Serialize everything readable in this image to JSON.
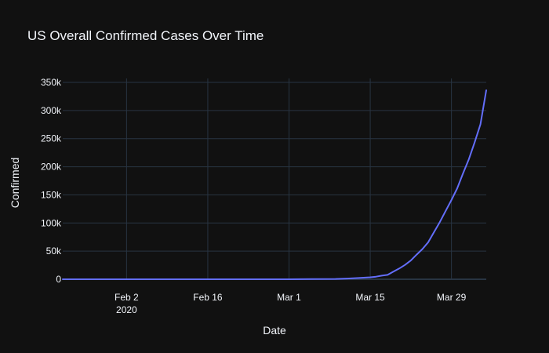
{
  "chart_data": {
    "type": "line",
    "title": "US Overall Confirmed Cases Over Time",
    "xlabel": "Date",
    "ylabel": "Confirmed",
    "xlim": [
      "2020-01-22",
      "2020-04-04"
    ],
    "ylim": [
      0,
      357000
    ],
    "grid": true,
    "x_ticks": [
      {
        "date": "2020-02-02",
        "label": "Feb 2",
        "sublabel": "2020"
      },
      {
        "date": "2020-02-16",
        "label": "Feb 16"
      },
      {
        "date": "2020-03-01",
        "label": "Mar 1"
      },
      {
        "date": "2020-03-15",
        "label": "Mar 15"
      },
      {
        "date": "2020-03-29",
        "label": "Mar 29"
      }
    ],
    "y_ticks": [
      {
        "value": 0,
        "label": "0"
      },
      {
        "value": 50000,
        "label": "50k"
      },
      {
        "value": 100000,
        "label": "100k"
      },
      {
        "value": 150000,
        "label": "150k"
      },
      {
        "value": 200000,
        "label": "200k"
      },
      {
        "value": 250000,
        "label": "250k"
      },
      {
        "value": 300000,
        "label": "300k"
      },
      {
        "value": 350000,
        "label": "350k"
      }
    ],
    "series": [
      {
        "color": "#636efa",
        "x": [
          "2020-01-22",
          "2020-02-05",
          "2020-02-19",
          "2020-03-01",
          "2020-03-05",
          "2020-03-09",
          "2020-03-11",
          "2020-03-13",
          "2020-03-15",
          "2020-03-16",
          "2020-03-17",
          "2020-03-18",
          "2020-03-19",
          "2020-03-20",
          "2020-03-21",
          "2020-03-22",
          "2020-03-23",
          "2020-03-24",
          "2020-03-25",
          "2020-03-26",
          "2020-03-27",
          "2020-03-28",
          "2020-03-29",
          "2020-03-30",
          "2020-03-31",
          "2020-04-01",
          "2020-04-02",
          "2020-04-03",
          "2020-04-04"
        ],
        "y": [
          1,
          12,
          15,
          30,
          220,
          600,
          1300,
          2200,
          3500,
          4600,
          6400,
          7800,
          13700,
          19100,
          25500,
          33300,
          43800,
          53700,
          65800,
          83800,
          101700,
          121500,
          140900,
          161800,
          188200,
          213400,
          243500,
          275600,
          336000
        ]
      }
    ]
  }
}
